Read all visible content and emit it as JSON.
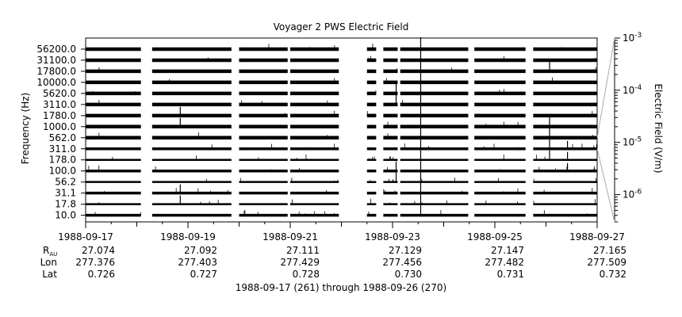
{
  "chart_data": {
    "type": "line",
    "title": "Voyager 2 PWS Electric Field",
    "ylabel": "Frequency (Hz)",
    "right_axis_label": "Electric Field (V/m)",
    "xlabel": "1988-09-17 (261) through 1988-09-26 (270)",
    "x_range": [
      "1988-09-17",
      "1988-09-27"
    ],
    "scale": "log",
    "right_axis_range": [
      3e-07,
      0.001
    ],
    "frequency_channels": [
      "10.0",
      "17.8",
      "31.1",
      "56.2",
      "100.0",
      "178.0",
      "311.0",
      "562.0",
      "1000.0",
      "1780.0",
      "3110.0",
      "5620.0",
      "10000.0",
      "17800.0",
      "31100.0",
      "56200.0"
    ],
    "x_tick_labels": [
      "1988-09-17",
      "1988-09-19",
      "1988-09-21",
      "1988-09-23",
      "1988-09-25",
      "1988-09-27"
    ],
    "right_tick_labels": [
      {
        "base": "10",
        "exp": "-3",
        "value": 0.001
      },
      {
        "base": "10",
        "exp": "-4",
        "value": 0.0001
      },
      {
        "base": "10",
        "exp": "-5",
        "value": 1e-05
      },
      {
        "base": "10",
        "exp": "-6",
        "value": 1e-06
      }
    ],
    "ephemeris": {
      "rows": [
        {
          "label": "R",
          "sub": "AU",
          "values": [
            "27.074",
            "27.092",
            "27.111",
            "27.129",
            "27.147",
            "27.165"
          ]
        },
        {
          "label": "Lon",
          "sub": "",
          "values": [
            "277.376",
            "277.403",
            "277.429",
            "277.456",
            "277.482",
            "277.509"
          ]
        },
        {
          "label": "Lat",
          "sub": "",
          "values": [
            "0.726",
            "0.727",
            "0.728",
            "0.730",
            "0.731",
            "0.732"
          ]
        }
      ]
    },
    "data_coverage_days": [
      [
        17.0,
        18.08
      ],
      [
        18.3,
        19.85
      ],
      [
        20.0,
        20.95
      ],
      [
        21.0,
        21.95
      ],
      [
        22.5,
        22.68
      ],
      [
        22.82,
        23.1
      ],
      [
        23.15,
        24.48
      ],
      [
        24.6,
        25.6
      ],
      [
        25.75,
        26.9
      ],
      [
        26.9,
        27.0
      ]
    ],
    "events": [
      {
        "day": 23.55,
        "channels": [
          0,
          1,
          2,
          3,
          4,
          5,
          6,
          7,
          8,
          9,
          10,
          11,
          12,
          13,
          14,
          15
        ],
        "strength": 0.9
      },
      {
        "day": 23.07,
        "channels": [
          3,
          4,
          10,
          11
        ],
        "strength": 0.6
      },
      {
        "day": 18.85,
        "channels": [
          1,
          2,
          8,
          9
        ],
        "strength": 0.5
      },
      {
        "day": 26.07,
        "channels": [
          5,
          6,
          7,
          8,
          13
        ],
        "strength": 0.6
      },
      {
        "day": 26.42,
        "channels": [
          4,
          5,
          6
        ],
        "strength": 0.4
      }
    ]
  }
}
